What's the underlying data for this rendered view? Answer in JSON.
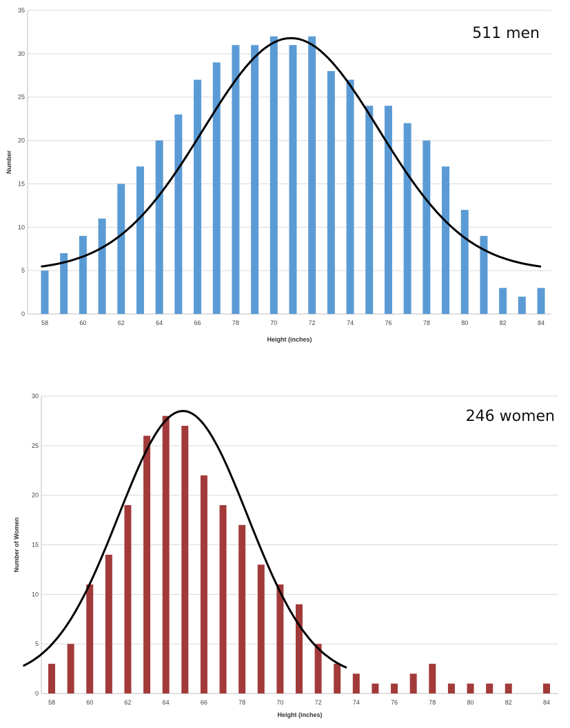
{
  "chart_data": [
    {
      "type": "bar",
      "annotation": "511 men",
      "xlabel": "Height (inches)",
      "ylabel": "Number",
      "ylim": [
        0,
        35
      ],
      "yticks": [
        0,
        5,
        10,
        15,
        20,
        25,
        30,
        35
      ],
      "xtick_labels": [
        "58",
        "60",
        "62",
        "64",
        "66",
        "78",
        "70",
        "72",
        "74",
        "76",
        "78",
        "80",
        "82",
        "84"
      ],
      "categories": [
        "58",
        "59",
        "60",
        "61",
        "62",
        "63",
        "64",
        "65",
        "66",
        "67",
        "78",
        "69",
        "70",
        "71",
        "72",
        "73",
        "74",
        "75",
        "76",
        "77",
        "78",
        "79",
        "80",
        "81",
        "82",
        "83",
        "84"
      ],
      "values": [
        5,
        7,
        9,
        11,
        15,
        17,
        20,
        23,
        27,
        29,
        31,
        31,
        32,
        31,
        32,
        28,
        27,
        24,
        24,
        22,
        20,
        17,
        12,
        9,
        3,
        2,
        3
      ],
      "fit_curve": {
        "mean": 70.9,
        "sd": 4.6,
        "peak": 31.8,
        "base": 5,
        "x_range": [
          57.8,
          84
        ]
      },
      "bar_color": "#5b9bd5",
      "grid": true,
      "legend": "none"
    },
    {
      "type": "bar",
      "annotation": "246 women",
      "xlabel": "Height (inches)",
      "ylabel": "Number of Women",
      "ylim": [
        0,
        30
      ],
      "yticks": [
        0,
        5,
        10,
        15,
        20,
        25,
        30
      ],
      "xtick_labels": [
        "58",
        "60",
        "62",
        "64",
        "66",
        "78",
        "70",
        "72",
        "74",
        "76",
        "78",
        "80",
        "82",
        "84"
      ],
      "categories": [
        "58",
        "59",
        "60",
        "61",
        "62",
        "63",
        "64",
        "65",
        "66",
        "67",
        "78",
        "69",
        "70",
        "71",
        "72",
        "73",
        "74",
        "75",
        "76",
        "77",
        "78",
        "79",
        "80",
        "81",
        "82",
        "83",
        "84"
      ],
      "values": [
        3,
        5,
        11,
        14,
        19,
        26,
        28,
        27,
        22,
        19,
        17,
        13,
        11,
        9,
        5,
        3,
        2,
        1,
        1,
        2,
        3,
        1,
        1,
        1,
        1,
        0,
        1
      ],
      "fit_curve": {
        "mean": 64.9,
        "sd": 3.4,
        "peak": 28.5,
        "base": 1.5,
        "x_range": [
          56.5,
          73.5
        ]
      },
      "bar_color": "#a33a3a",
      "grid": true,
      "legend": "none"
    }
  ]
}
